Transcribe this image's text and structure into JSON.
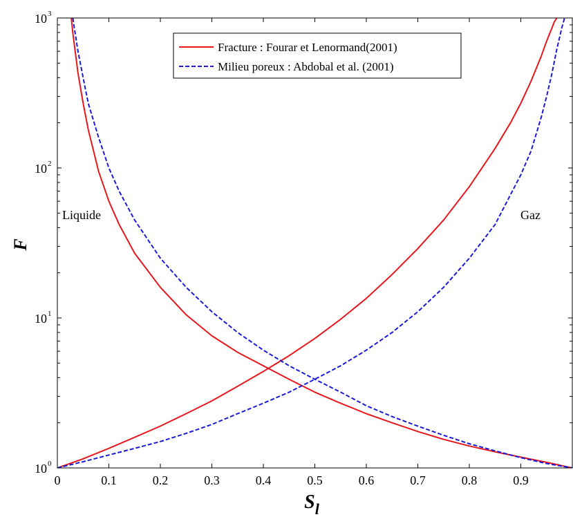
{
  "chart_data": {
    "type": "line",
    "xlabel": "S",
    "xlabel_sub": "l",
    "ylabel": "F",
    "xlim": [
      0,
      1
    ],
    "ylim": [
      1,
      1000
    ],
    "yscale": "log",
    "xticks": [
      "0",
      "0.1",
      "0.2",
      "0.3",
      "0.4",
      "0.5",
      "0.6",
      "0.7",
      "0.8",
      "0.9"
    ],
    "yticks": [
      {
        "base": "10",
        "exp": "0",
        "value": 1
      },
      {
        "base": "10",
        "exp": "1",
        "value": 10
      },
      {
        "base": "10",
        "exp": "2",
        "value": 100
      },
      {
        "base": "10",
        "exp": "3",
        "value": 1000
      }
    ],
    "grid": false,
    "legend_position": "top-right",
    "annotations": [
      {
        "text": "Liquide",
        "x": 0.01,
        "y": 35
      },
      {
        "text": "Gaz",
        "x": 0.91,
        "y": 35
      }
    ],
    "series": [
      {
        "name": "Fracture : Fourar et Lenormand(2001)",
        "color": "#e8161b",
        "style": "solid",
        "group": "liquide",
        "x": [
          0.027,
          0.03,
          0.04,
          0.05,
          0.06,
          0.08,
          0.1,
          0.12,
          0.15,
          0.2,
          0.25,
          0.3,
          0.35,
          0.4,
          0.45,
          0.5,
          0.55,
          0.6,
          0.65,
          0.7,
          0.75,
          0.8,
          0.85,
          0.9,
          0.95,
          1.0
        ],
        "y": [
          1000,
          800,
          430,
          270,
          180,
          95,
          60,
          42,
          27,
          16,
          10.5,
          7.6,
          5.9,
          4.8,
          3.9,
          3.2,
          2.7,
          2.3,
          2.0,
          1.75,
          1.55,
          1.4,
          1.28,
          1.18,
          1.09,
          1.0
        ]
      },
      {
        "name": "",
        "color": "#e8161b",
        "style": "solid",
        "group": "gaz",
        "x": [
          0.0,
          0.05,
          0.1,
          0.15,
          0.2,
          0.25,
          0.3,
          0.35,
          0.4,
          0.45,
          0.5,
          0.55,
          0.6,
          0.65,
          0.7,
          0.75,
          0.8,
          0.85,
          0.88,
          0.9,
          0.92,
          0.94,
          0.95,
          0.96,
          0.965,
          0.97
        ],
        "y": [
          1.0,
          1.15,
          1.35,
          1.6,
          1.9,
          2.3,
          2.8,
          3.5,
          4.4,
          5.6,
          7.3,
          9.8,
          13.5,
          19.5,
          29,
          45,
          75,
          135,
          200,
          270,
          380,
          560,
          700,
          850,
          940,
          1000
        ]
      },
      {
        "name": "Milieu poreux : Abdobal et al. (2001)",
        "color": "#1a1ad6",
        "style": "dashed",
        "group": "liquide",
        "x": [
          0.03,
          0.04,
          0.05,
          0.06,
          0.08,
          0.1,
          0.12,
          0.15,
          0.2,
          0.25,
          0.3,
          0.35,
          0.4,
          0.45,
          0.5,
          0.55,
          0.6,
          0.65,
          0.7,
          0.75,
          0.8,
          0.85,
          0.9,
          0.95,
          1.0
        ],
        "y": [
          1000,
          600,
          400,
          270,
          160,
          100,
          70,
          45,
          25,
          16,
          11,
          8,
          6.1,
          4.8,
          3.9,
          3.2,
          2.6,
          2.2,
          1.9,
          1.65,
          1.45,
          1.3,
          1.17,
          1.07,
          1.0
        ]
      },
      {
        "name": "",
        "color": "#1a1ad6",
        "style": "dashed",
        "group": "gaz",
        "x": [
          0.0,
          0.05,
          0.1,
          0.15,
          0.2,
          0.25,
          0.3,
          0.35,
          0.4,
          0.45,
          0.5,
          0.55,
          0.6,
          0.65,
          0.7,
          0.75,
          0.8,
          0.85,
          0.9,
          0.92,
          0.94,
          0.95,
          0.96,
          0.97,
          0.98,
          0.985
        ],
        "y": [
          1.0,
          1.1,
          1.22,
          1.35,
          1.5,
          1.7,
          1.95,
          2.3,
          2.7,
          3.2,
          3.9,
          4.8,
          6.1,
          8.0,
          11,
          16,
          25,
          42,
          90,
          130,
          220,
          300,
          420,
          620,
          870,
          1000
        ]
      }
    ]
  }
}
